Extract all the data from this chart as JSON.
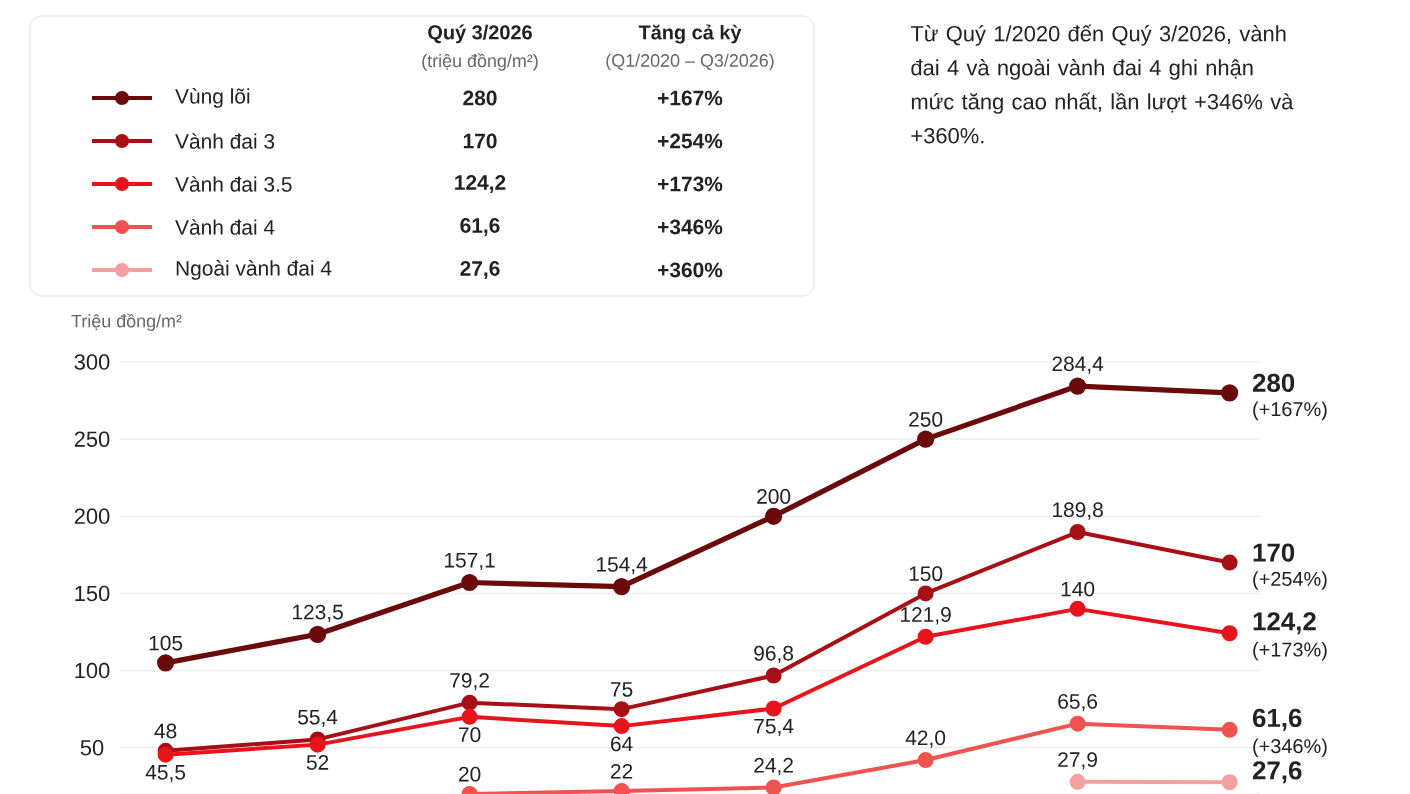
{
  "chart_data": {
    "type": "line",
    "ylabel": "Triệu đồng/m²",
    "categories": [
      null,
      null,
      null,
      null,
      null,
      null,
      null,
      null
    ],
    "series": [
      {
        "name": "Vùng lõi",
        "color": "#6b0a0a",
        "values": [
          105,
          123.5,
          157.1,
          154.4,
          200,
          250,
          284.4,
          280
        ],
        "value_labels": [
          "105",
          "123,5",
          "157,1",
          "154,4",
          "200",
          "250",
          "284,4",
          "280"
        ]
      },
      {
        "name": "Vành đai 3",
        "color": "#a50f15",
        "values": [
          48,
          55.4,
          79.2,
          75,
          96.8,
          150,
          189.8,
          170
        ],
        "value_labels": [
          "48",
          "55,4",
          "79,2",
          "75",
          "96,8",
          "150",
          "189,8",
          "170"
        ]
      },
      {
        "name": "Vành đai 3.5",
        "color": "#e8141c",
        "values": [
          45.5,
          52,
          70,
          64,
          75.4,
          121.9,
          140,
          124.2
        ],
        "value_labels": [
          "45,5",
          "52",
          "70",
          "64",
          "75,4",
          "121,9",
          "140",
          "124,2"
        ]
      },
      {
        "name": "Vành đai 4",
        "color": "#ef5350",
        "values": [
          null,
          null,
          20,
          22,
          24.2,
          42,
          65.6,
          61.6
        ],
        "value_labels": [
          null,
          null,
          "20",
          "22",
          "24,2",
          "42,0",
          "65,6",
          "61,6"
        ]
      },
      {
        "name": "Ngoài vành đai 4",
        "color": "#f4a0a0",
        "values": [
          null,
          null,
          null,
          null,
          null,
          null,
          27.9,
          27.6
        ],
        "value_labels": [
          null,
          null,
          null,
          null,
          null,
          null,
          "27,9",
          "27,6"
        ]
      }
    ],
    "ylim": [
      20,
      300
    ],
    "yticks": [
      50,
      100,
      150,
      200,
      250,
      300
    ],
    "grid": "y",
    "legend": "top left",
    "marker": "circle",
    "line_style": "solid",
    "annotations": [
      "Quý 3/2026",
      "(triệu đồng/m²)",
      "Tăng cả kỳ",
      "(Q1/2020 – Q3/2026)",
      "280",
      "170",
      "124,2",
      "61,6",
      "27,6",
      "+167%",
      "+254%",
      "+173%",
      "+346%",
      "+360%",
      "Từ Quý 1/2020 đến Quý 3/2026, vành đai 4 và ngoài vành đai 4 ghi nhận mức tăng cao nhất, lần lượt +346% và +360%.",
      "(+167%)",
      "(+254%)",
      "(+173%)",
      "(+346%)"
    ]
  }
}
